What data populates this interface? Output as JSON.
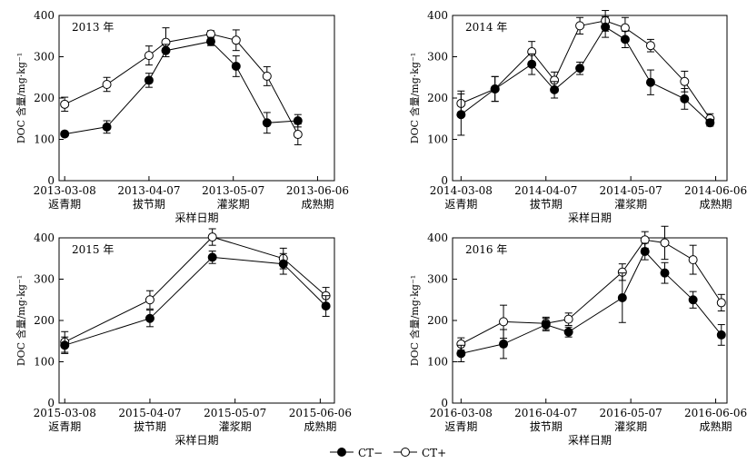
{
  "legend": {
    "ct_minus": "CT−",
    "ct_plus": "CT+"
  },
  "chart_data": [
    {
      "type": "line",
      "title": "2013 年",
      "ylabel": "DOC 含量/mg·kg⁻¹",
      "xlabel": "采样日期",
      "ylim": [
        0,
        400
      ],
      "yticks": [
        "0",
        "100",
        "200",
        "300",
        "400"
      ],
      "xticks": [
        "2013-03-08",
        "2013-04-07",
        "2013-05-07",
        "2013-06-06"
      ],
      "stages": [
        "返青期",
        "拔节期",
        "灌浆期",
        "成熟期"
      ],
      "series": [
        {
          "name": "CT−",
          "points": [
            [
              0,
              113
            ],
            [
              15,
              130
            ],
            [
              30,
              243
            ],
            [
              36,
              315
            ],
            [
              52,
              337
            ],
            [
              61,
              277
            ],
            [
              72,
              140
            ],
            [
              83,
              145
            ]
          ],
          "ci": [
            5,
            15,
            17,
            15,
            10,
            25,
            25,
            15
          ]
        },
        {
          "name": "CT+",
          "points": [
            [
              0,
              185
            ],
            [
              15,
              233
            ],
            [
              30,
              303
            ],
            [
              36,
              335
            ],
            [
              52,
              355
            ],
            [
              61,
              340
            ],
            [
              72,
              253
            ],
            [
              83,
              112
            ]
          ],
          "ci": [
            17,
            17,
            23,
            35,
            8,
            25,
            23,
            25
          ]
        }
      ]
    },
    {
      "type": "line",
      "title": "2014 年",
      "ylabel": "DOC 含量/mg·kg⁻¹",
      "xlabel": "采样日期",
      "ylim": [
        0,
        400
      ],
      "yticks": [
        "0",
        "100",
        "200",
        "300",
        "400"
      ],
      "xticks": [
        "2014-03-08",
        "2014-04-07",
        "2014-05-07",
        "2014-06-06"
      ],
      "stages": [
        "返青期",
        "拔节期",
        "灌浆期",
        "成熟期"
      ],
      "series": [
        {
          "name": "CT−",
          "points": [
            [
              0,
              160
            ],
            [
              12,
              222
            ],
            [
              25,
              282
            ],
            [
              33,
              220
            ],
            [
              42,
              272
            ],
            [
              51,
              372
            ],
            [
              58,
              342
            ],
            [
              67,
              238
            ],
            [
              79,
              198
            ],
            [
              88,
              140
            ]
          ],
          "ci": [
            50,
            30,
            25,
            20,
            15,
            25,
            20,
            30,
            25,
            8
          ]
        },
        {
          "name": "CT+",
          "points": [
            [
              0,
              187
            ],
            [
              12,
              222
            ],
            [
              25,
              312
            ],
            [
              33,
              243
            ],
            [
              42,
              375
            ],
            [
              51,
              387
            ],
            [
              58,
              370
            ],
            [
              67,
              327
            ],
            [
              79,
              240
            ],
            [
              88,
              150
            ]
          ],
          "ci": [
            30,
            30,
            25,
            20,
            20,
            25,
            25,
            15,
            25,
            12
          ]
        }
      ]
    },
    {
      "type": "line",
      "title": "2015 年",
      "ylabel": "DOC 含量/mg·kg⁻¹",
      "xlabel": "采样日期",
      "ylim": [
        0,
        400
      ],
      "yticks": [
        "0",
        "100",
        "200",
        "300",
        "400"
      ],
      "xticks": [
        "2015-03-08",
        "2015-04-07",
        "2015-05-07",
        "2015-06-06"
      ],
      "stages": [
        "返青期",
        "拔节期",
        "灌浆期",
        "成熟期"
      ],
      "series": [
        {
          "name": "CT−",
          "points": [
            [
              0,
              140
            ],
            [
              30,
              205
            ],
            [
              52,
              353
            ],
            [
              77,
              337
            ],
            [
              92,
              235
            ]
          ],
          "ci": [
            20,
            20,
            15,
            25,
            25
          ]
        },
        {
          "name": "CT+",
          "points": [
            [
              0,
              148
            ],
            [
              30,
              250
            ],
            [
              52,
              402
            ],
            [
              77,
              350
            ],
            [
              92,
              260
            ]
          ],
          "ci": [
            25,
            22,
            20,
            25,
            20
          ]
        }
      ]
    },
    {
      "type": "line",
      "title": "2016 年",
      "ylabel": "DOC 含量/mg·kg⁻¹",
      "xlabel": "采样日期",
      "ylim": [
        0,
        400
      ],
      "yticks": [
        "0",
        "100",
        "200",
        "300",
        "400"
      ],
      "xticks": [
        "2016-03-08",
        "2016-04-07",
        "2016-05-07",
        "2016-06-06"
      ],
      "stages": [
        "返青期",
        "拔节期",
        "灌浆期",
        "成熟期"
      ],
      "series": [
        {
          "name": "CT−",
          "points": [
            [
              0,
              120
            ],
            [
              15,
              143
            ],
            [
              30,
              190
            ],
            [
              38,
              172
            ],
            [
              57,
              255
            ],
            [
              65,
              367
            ],
            [
              72,
              315
            ],
            [
              82,
              250
            ],
            [
              92,
              165
            ]
          ],
          "ci": [
            20,
            35,
            15,
            12,
            60,
            20,
            25,
            20,
            25
          ]
        },
        {
          "name": "CT+",
          "points": [
            [
              0,
              143
            ],
            [
              15,
              197
            ],
            [
              30,
              193
            ],
            [
              38,
              203
            ],
            [
              57,
              317
            ],
            [
              65,
              395
            ],
            [
              72,
              388
            ],
            [
              82,
              347
            ],
            [
              92,
              243
            ]
          ],
          "ci": [
            15,
            40,
            15,
            15,
            20,
            20,
            40,
            35,
            20
          ]
        }
      ]
    }
  ]
}
